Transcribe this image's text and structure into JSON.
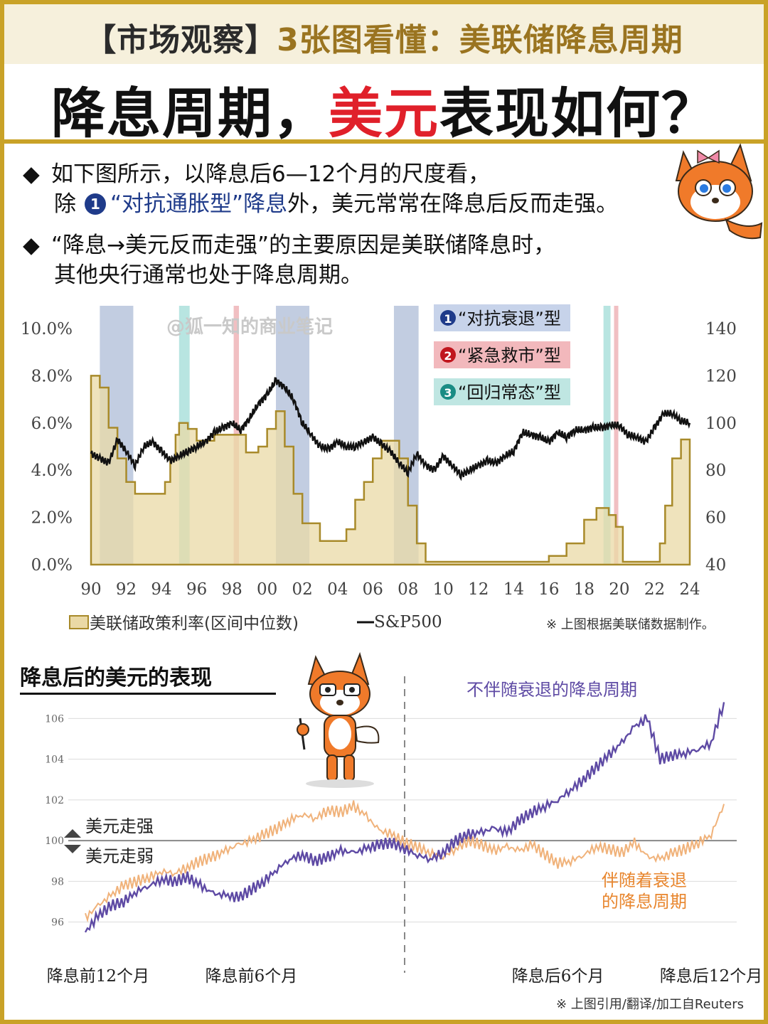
{
  "header": {
    "tag": "【市场观察】",
    "title": "3张图看懂：美联储降息周期"
  },
  "main_title": {
    "part1": "降息周期，",
    "part2": "美元",
    "part3": "表现如何？"
  },
  "bullets": {
    "b1_line1": "如下图所示，以降息后6—12个月的尺度看，",
    "b1_line2_pre": "除",
    "b1_badge": "1",
    "b1_line2_quote": "“对抗通胀型”降息",
    "b1_line2_post": "外，美元常常在降息后反而走强。",
    "b2_line1": "“降息→美元反而走强”的主要原因是美联储降息时，",
    "b2_line2": "其他央行通常也处于降息周期。"
  },
  "chart1_text": {
    "watermark": "@狐一知的商业笔记",
    "type1": "“对抗衰退”型",
    "type2": "“紧急救市”型",
    "type3": "“回归常态”型",
    "legend_rate": "美联储政策利率(区间中位数)",
    "legend_sp": "S&P500",
    "note": "※ 上图根据美联储数据制作。"
  },
  "chart2_text": {
    "title": "降息后的美元的表现",
    "label_non_recession": "不伴随衰退的降息周期",
    "label_recession_l1": "伴随着衰退",
    "label_recession_l2": "的降息周期",
    "stronger": "美元走强",
    "weaker": "美元走弱",
    "note": "※ 上图引用/翻译/加工自Reuters"
  },
  "colors": {
    "gold": "#c9a227",
    "red": "#e0202a",
    "navy": "#1f3b8a",
    "rate_fill": "#ead9a6",
    "rate_line": "#a88a2a",
    "band_recession": "#8fa4c8",
    "band_emergency": "#e58a8f",
    "band_normal": "#7ecfc8",
    "purple": "#5e4aa4",
    "orange": "#f0b27a"
  },
  "chart_data": [
    {
      "type": "area",
      "title": "",
      "xlabel": "",
      "ylabel_left": "",
      "ylabel_right": "",
      "x_ticks": [
        "90",
        "92",
        "94",
        "96",
        "98",
        "00",
        "02",
        "04",
        "06",
        "08",
        "10",
        "12",
        "14",
        "16",
        "18",
        "20",
        "22",
        "24"
      ],
      "xlim": [
        1990,
        2024
      ],
      "y_left_ticks": [
        "0.0%",
        "2.0%",
        "4.0%",
        "6.0%",
        "8.0%",
        "10.0%"
      ],
      "ylim_left": [
        0,
        10
      ],
      "y_right_ticks": [
        "40",
        "60",
        "80",
        "100",
        "120",
        "140"
      ],
      "ylim_right": [
        40,
        140
      ],
      "legend_placement": "bottom",
      "series": [
        {
          "name": "美联储政策利率(区间中位数)",
          "axis": "left",
          "kind": "step-area",
          "x": [
            1990,
            1990.5,
            1991,
            1991.5,
            1992,
            1992.5,
            1993,
            1993.5,
            1994,
            1994.2,
            1994.5,
            1994.8,
            1995,
            1995.5,
            1996,
            1997,
            1998,
            1998.8,
            1999.5,
            2000,
            2000.5,
            2001,
            2001.5,
            2002,
            2002.5,
            2003,
            2003.5,
            2004,
            2004.5,
            2005,
            2005.5,
            2006,
            2006.5,
            2007,
            2007.5,
            2008,
            2008.5,
            2009,
            2015,
            2016,
            2017,
            2018,
            2018.7,
            2019,
            2019.4,
            2019.8,
            2020.2,
            2021,
            2021.9,
            2022.3,
            2022.6,
            2023,
            2023.5,
            2024
          ],
          "y": [
            8.0,
            7.5,
            5.8,
            4.5,
            3.5,
            3.0,
            3.0,
            3.0,
            3.0,
            3.5,
            4.5,
            5.5,
            6.0,
            5.75,
            5.25,
            5.5,
            5.5,
            4.75,
            5.0,
            5.75,
            6.5,
            5.0,
            3.0,
            1.75,
            1.75,
            1.0,
            1.0,
            1.0,
            1.5,
            2.75,
            3.5,
            4.5,
            5.25,
            5.25,
            4.5,
            2.5,
            0.9,
            0.12,
            0.12,
            0.37,
            0.9,
            1.9,
            2.4,
            2.4,
            2.1,
            1.6,
            0.12,
            0.12,
            0.12,
            0.9,
            2.5,
            4.5,
            5.3,
            5.3
          ]
        },
        {
          "name": "S&P500",
          "axis": "right",
          "kind": "line",
          "x": [
            1990,
            1990.5,
            1991,
            1991.5,
            1992,
            1992.5,
            1993,
            1993.5,
            1994,
            1994.5,
            1995,
            1995.5,
            1996,
            1996.5,
            1997,
            1997.5,
            1998,
            1998.5,
            1999,
            1999.5,
            2000,
            2000.5,
            2001,
            2001.5,
            2002,
            2002.5,
            2003,
            2003.5,
            2004,
            2004.5,
            2005,
            2005.5,
            2006,
            2006.5,
            2007,
            2007.5,
            2008,
            2008.5,
            2009,
            2009.5,
            2010,
            2010.5,
            2011,
            2011.5,
            2012,
            2012.5,
            2013,
            2013.5,
            2014,
            2014.5,
            2015,
            2015.5,
            2016,
            2016.5,
            2017,
            2017.5,
            2018,
            2018.5,
            2019,
            2019.5,
            2020,
            2020.5,
            2021,
            2021.5,
            2022,
            2022.5,
            2023,
            2023.5,
            2024
          ],
          "y": [
            87,
            85,
            83,
            93,
            88,
            82,
            90,
            92,
            88,
            84,
            86,
            88,
            90,
            92,
            96,
            98,
            100,
            97,
            102,
            108,
            112,
            118,
            115,
            110,
            100,
            95,
            90,
            89,
            92,
            90,
            90,
            92,
            94,
            91,
            88,
            83,
            79,
            87,
            82,
            80,
            86,
            82,
            78,
            80,
            82,
            84,
            83,
            86,
            88,
            96,
            95,
            94,
            92,
            96,
            94,
            97,
            97,
            98,
            98,
            99,
            99,
            95,
            94,
            92,
            98,
            104,
            104,
            101,
            100
          ]
        }
      ],
      "bands": [
        {
          "type": "1",
          "start": 1990.5,
          "end": 1992.4
        },
        {
          "type": "3",
          "start": 1995.0,
          "end": 1995.6
        },
        {
          "type": "2",
          "start": 1998.1,
          "end": 1998.4
        },
        {
          "type": "1",
          "start": 2000.5,
          "end": 2002.4
        },
        {
          "type": "1",
          "start": 2007.2,
          "end": 2008.6
        },
        {
          "type": "3",
          "start": 2019.1,
          "end": 2019.5
        },
        {
          "type": "2",
          "start": 2019.7,
          "end": 2019.9
        }
      ]
    },
    {
      "type": "line",
      "title": "降息后的美元的表现",
      "xlabel": "",
      "ylabel": "",
      "x_ticks": [
        "降息前12个月",
        "降息前6个月",
        "降息后6个月",
        "降息后12个月"
      ],
      "x_tick_values": [
        -12,
        -6,
        6,
        12
      ],
      "xlim": [
        -13,
        13
      ],
      "y_ticks": [
        "96",
        "98",
        "100",
        "102",
        "104",
        "106"
      ],
      "ylim": [
        95.5,
        106.5
      ],
      "reference_line": 100,
      "vertical_marker": 0,
      "series": [
        {
          "name": "不伴随衰退的降息周期",
          "x": [
            -12.5,
            -12,
            -11.5,
            -11,
            -10.5,
            -10,
            -9.5,
            -9,
            -8.5,
            -8,
            -7.5,
            -7,
            -6.5,
            -6,
            -5.5,
            -5,
            -4.5,
            -4,
            -3.5,
            -3,
            -2.5,
            -2,
            -1.5,
            -1,
            -0.5,
            0,
            0.5,
            1,
            1.5,
            2,
            2.5,
            3,
            3.5,
            4,
            4.5,
            5,
            5.5,
            6,
            6.5,
            7,
            7.5,
            8,
            8.5,
            9,
            9.5,
            10,
            10.5,
            11,
            11.5,
            12,
            12.5
          ],
          "y": [
            95.5,
            96.3,
            96.8,
            97.0,
            97.5,
            97.8,
            98.1,
            98.0,
            98.2,
            97.8,
            97.4,
            97.3,
            97.2,
            97.6,
            98.0,
            98.6,
            99.1,
            99.3,
            99.0,
            99.2,
            99.5,
            99.4,
            99.6,
            99.8,
            99.9,
            99.6,
            99.3,
            99.1,
            99.4,
            100.0,
            100.3,
            100.4,
            100.6,
            100.4,
            101.0,
            101.4,
            101.7,
            102.0,
            102.5,
            103.0,
            103.6,
            104.2,
            104.8,
            105.6,
            106.0,
            104.0,
            104.2,
            104.3,
            104.5,
            104.8,
            106.8
          ]
        },
        {
          "name": "伴随着衰退的降息周期",
          "x": [
            -12.5,
            -12,
            -11.5,
            -11,
            -10.5,
            -10,
            -9.5,
            -9,
            -8.5,
            -8,
            -7.5,
            -7,
            -6.5,
            -6,
            -5.5,
            -5,
            -4.5,
            -4,
            -3.5,
            -3,
            -2.5,
            -2,
            -1.5,
            -1,
            -0.5,
            0,
            0.5,
            1,
            1.5,
            2,
            2.5,
            3,
            3.5,
            4,
            4.5,
            5,
            5.5,
            6,
            6.5,
            7,
            7.5,
            8,
            8.5,
            9,
            9.5,
            10,
            10.5,
            11,
            11.5,
            12,
            12.5
          ],
          "y": [
            96.2,
            96.8,
            97.3,
            97.8,
            98.0,
            98.2,
            98.5,
            98.4,
            98.7,
            99.0,
            99.2,
            99.5,
            99.8,
            100.0,
            100.3,
            100.6,
            101.0,
            101.3,
            101.1,
            101.5,
            101.4,
            101.7,
            101.2,
            100.5,
            100.3,
            99.9,
            99.7,
            99.4,
            99.2,
            99.6,
            100.0,
            99.8,
            99.5,
            99.7,
            99.5,
            99.8,
            99.3,
            98.9,
            99.0,
            99.3,
            99.7,
            99.6,
            99.4,
            99.9,
            99.2,
            99.1,
            99.4,
            99.6,
            99.9,
            100.3,
            101.8
          ]
        }
      ]
    }
  ]
}
